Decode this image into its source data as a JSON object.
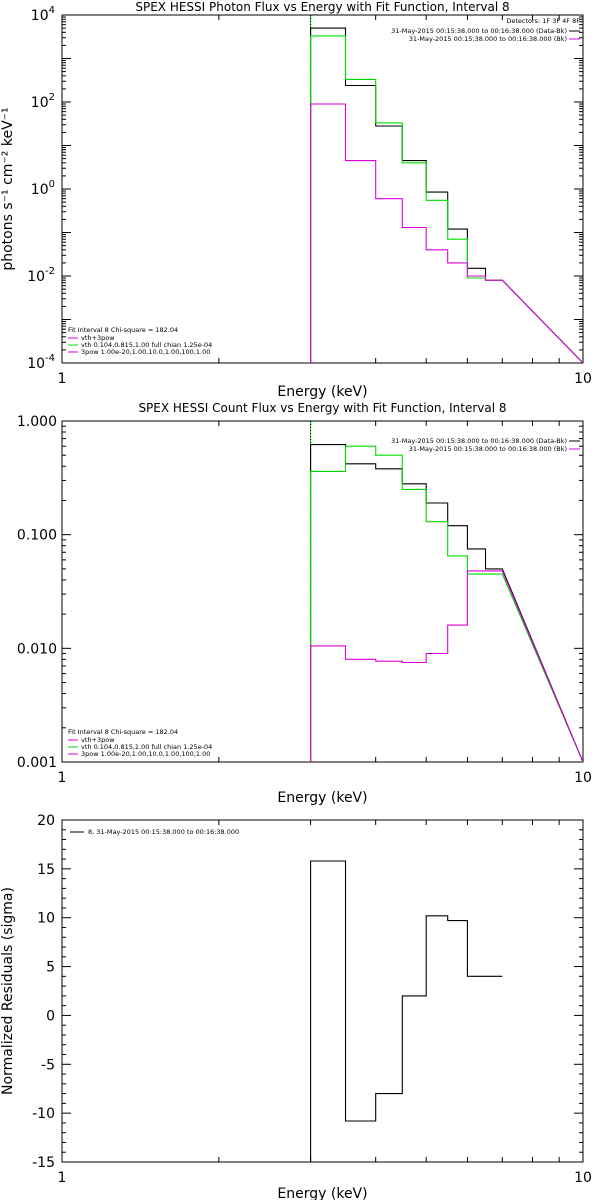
{
  "colors": {
    "black": "#000000",
    "green": "#00dd00",
    "magenta": "#dd00dd",
    "white": "#ffffff"
  },
  "chart_data": [
    {
      "type": "line",
      "title": "SPEX HESSI Photon Flux vs Energy with Fit Function, Interval 8",
      "xlabel": "Energy (keV)",
      "ylabel": "photons s⁻¹ cm⁻² keV⁻¹",
      "xscale": "log",
      "yscale": "log",
      "xlim": [
        1,
        10
      ],
      "ylim": [
        0.0001,
        10000
      ],
      "x_ticks": [
        {
          "value": 1,
          "label": "1"
        },
        {
          "value": 10,
          "label": "10"
        }
      ],
      "y_ticks": [
        {
          "value": 10000,
          "base": "10",
          "exp": "4"
        },
        {
          "value": 100,
          "base": "10",
          "exp": "2"
        },
        {
          "value": 1,
          "base": "10",
          "exp": "0"
        },
        {
          "value": 0.01,
          "base": "10",
          "exp": "-2"
        },
        {
          "value": 0.0001,
          "base": "10",
          "exp": "-4"
        }
      ],
      "energy_edges": [
        3.0,
        3.5,
        4.0,
        4.5,
        5.0,
        5.5,
        6.0,
        6.5,
        7.0
      ],
      "vline_x": 3.0,
      "legend_top_right": {
        "title": "Detectors: 1F 3F 4F 8F",
        "entries": [
          {
            "text": "31-May-2015 00:15:38.000 to 00:16:38.000 (Data-Bk)",
            "color": "#000000"
          },
          {
            "text": "31-May-2015 00:15:38.000 to 00:16:38.000 (Bk)",
            "color": "#dd00dd"
          }
        ]
      },
      "legend_bottom_left": {
        "header": "Fit Interval 8   Chi-square = 182.04",
        "entries": [
          {
            "text": "vth+3pow",
            "color": "#dd00dd"
          },
          {
            "text": "vth 0.104,0.815,1.00  full chian 1.25e-04",
            "color": "#00dd00"
          },
          {
            "text": "3pow 1.00e-20,1.00,10.0,1.00,100,1.00",
            "color": "#dd00dd"
          }
        ]
      },
      "series": [
        {
          "color": "#000000",
          "values": [
            5000,
            240,
            28,
            4.5,
            0.85,
            0.12,
            0.015,
            0.008
          ]
        },
        {
          "color": "#00dd00",
          "values": [
            3300,
            330,
            33,
            4.0,
            0.55,
            0.07,
            0.009,
            0.008
          ]
        },
        {
          "color": "#dd00dd",
          "values": [
            90,
            4.5,
            0.6,
            0.13,
            0.04,
            0.02,
            0.01,
            0.008
          ]
        }
      ]
    },
    {
      "type": "line",
      "title": "SPEX HESSI Count Flux vs Energy with Fit Function, Interval 8",
      "xlabel": "Energy (keV)",
      "ylabel": "",
      "xscale": "log",
      "yscale": "log",
      "xlim": [
        1,
        10
      ],
      "ylim": [
        0.001,
        1.0
      ],
      "x_ticks": [
        {
          "value": 1,
          "label": "1"
        },
        {
          "value": 10,
          "label": "10"
        }
      ],
      "y_ticks": [
        {
          "value": 1.0,
          "label": "1.000"
        },
        {
          "value": 0.1,
          "label": "0.100"
        },
        {
          "value": 0.01,
          "label": "0.010"
        },
        {
          "value": 0.001,
          "label": "0.001"
        }
      ],
      "energy_edges": [
        3.0,
        3.5,
        4.0,
        4.5,
        5.0,
        5.5,
        6.0,
        6.5,
        7.0
      ],
      "vline_x": 3.0,
      "legend_top_right": {
        "entries": [
          {
            "text": "31-May-2015 00:15:38.000 to 00:16:38.000 (Data-Bk)",
            "color": "#000000"
          },
          {
            "text": "31-May-2015 00:15:38.000 to 00:16:38.000 (Bk)",
            "color": "#dd00dd"
          }
        ]
      },
      "legend_bottom_left": {
        "header": "Fit Interval 8   Chi-square = 182.04",
        "entries": [
          {
            "text": "vth+3pow",
            "color": "#dd00dd"
          },
          {
            "text": "vth 0.104,0.815,1.00  full chian 1.25e-04",
            "color": "#00dd00"
          },
          {
            "text": "3pow 1.00e-20,1.00,10.0,1.00,100,1.00",
            "color": "#dd00dd"
          }
        ]
      },
      "series": [
        {
          "color": "#000000",
          "values": [
            0.62,
            0.42,
            0.38,
            0.28,
            0.19,
            0.12,
            0.075,
            0.05
          ]
        },
        {
          "color": "#00dd00",
          "values": [
            0.36,
            0.6,
            0.5,
            0.25,
            0.13,
            0.065,
            0.045,
            0.045
          ]
        },
        {
          "color": "#dd00dd",
          "values": [
            0.0105,
            0.008,
            0.0077,
            0.0075,
            0.009,
            0.016,
            0.048,
            0.048
          ]
        }
      ]
    },
    {
      "type": "line",
      "title": "",
      "xlabel": "Energy (keV)",
      "ylabel": "Normalized Residuals (sigma)",
      "xscale": "log",
      "yscale": "linear",
      "xlim": [
        1,
        10
      ],
      "ylim": [
        -15,
        20
      ],
      "x_ticks": [
        {
          "value": 1,
          "label": "1"
        },
        {
          "value": 10,
          "label": "10"
        }
      ],
      "y_ticks": [
        {
          "value": 20,
          "label": "20"
        },
        {
          "value": 15,
          "label": "15"
        },
        {
          "value": 10,
          "label": "10"
        },
        {
          "value": 5,
          "label": "5"
        },
        {
          "value": 0,
          "label": "0"
        },
        {
          "value": -5,
          "label": "-5"
        },
        {
          "value": -10,
          "label": "-10"
        },
        {
          "value": -15,
          "label": "-15"
        }
      ],
      "energy_edges": [
        3.0,
        3.5,
        4.0,
        4.5,
        5.0,
        5.5,
        6.0,
        6.5,
        7.0
      ],
      "legend_top_left": {
        "entries": [
          {
            "text": "8, 31-May-2015 00:15:38.000 to 00:16:38.000",
            "color": "#000000"
          }
        ]
      },
      "series": [
        {
          "color": "#000000",
          "values": [
            15.8,
            -10.8,
            -8.0,
            2.0,
            10.2,
            9.7,
            4.0,
            4.0
          ]
        }
      ]
    }
  ]
}
